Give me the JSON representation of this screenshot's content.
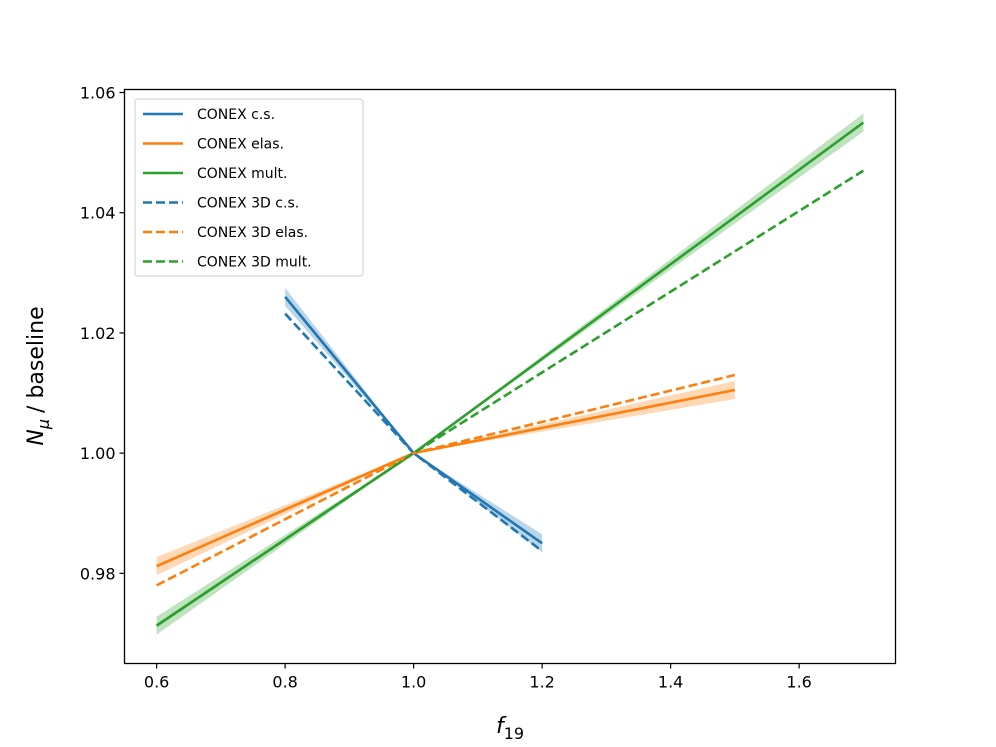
{
  "chart_data": {
    "type": "line",
    "title": "",
    "xlabel": "f",
    "xlabel_sub": "19",
    "ylabel": "/ baseline",
    "ylabel_main": "N",
    "ylabel_sub": "μ",
    "xlim": [
      0.55,
      1.75
    ],
    "ylim": [
      0.965,
      1.0605
    ],
    "xticks": [
      0.6,
      0.8,
      1.0,
      1.2,
      1.4,
      1.6
    ],
    "xtick_labels": [
      "0.6",
      "0.8",
      "1.0",
      "1.2",
      "1.4",
      "1.6"
    ],
    "yticks": [
      0.98,
      1.0,
      1.02,
      1.04,
      1.06
    ],
    "ytick_labels": [
      "0.98",
      "1.00",
      "1.02",
      "1.04",
      "1.06"
    ],
    "grid": false,
    "legend_position": "top-left",
    "series": [
      {
        "name": "CONEX c.s.",
        "color": "#1f77b4",
        "style": "solid",
        "x": [
          0.8,
          1.0,
          1.2
        ],
        "y": [
          1.026,
          1.0,
          0.985
        ],
        "band": [
          0.0015,
          0.0,
          0.0015
        ]
      },
      {
        "name": "CONEX elas.",
        "color": "#ff7f0e",
        "style": "solid",
        "x": [
          0.6,
          1.0,
          1.5
        ],
        "y": [
          0.9812,
          1.0,
          1.0105
        ],
        "band": [
          0.0015,
          0.0,
          0.0015
        ]
      },
      {
        "name": "CONEX mult.",
        "color": "#2ca02c",
        "style": "solid",
        "x": [
          0.6,
          1.0,
          1.7
        ],
        "y": [
          0.9713,
          1.0,
          1.055
        ],
        "band": [
          0.0015,
          0.0,
          0.0015
        ]
      },
      {
        "name": "CONEX 3D c.s.",
        "color": "#1f77b4",
        "style": "dashed",
        "x": [
          0.8,
          1.0,
          1.2
        ],
        "y": [
          1.0232,
          1.0,
          0.9837
        ]
      },
      {
        "name": "CONEX 3D elas.",
        "color": "#ff7f0e",
        "style": "dashed",
        "x": [
          0.6,
          1.0,
          1.5
        ],
        "y": [
          0.978,
          1.0,
          1.013
        ]
      },
      {
        "name": "CONEX 3D mult.",
        "color": "#2ca02c",
        "style": "dashed",
        "x": [
          0.6,
          1.0,
          1.7
        ],
        "y": [
          0.9713,
          1.0,
          1.047
        ]
      }
    ]
  }
}
